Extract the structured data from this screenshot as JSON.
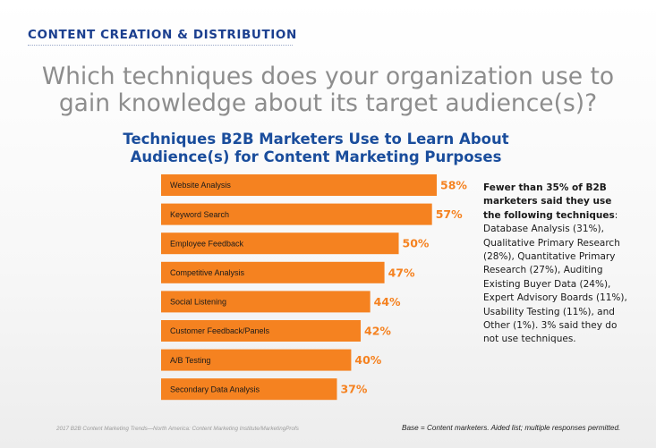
{
  "header": {
    "section_label": "CONTENT CREATION & DISTRIBUTION",
    "question_line1": "Which techniques does your organization use to",
    "question_line2": "gain knowledge about its target audience(s)?"
  },
  "chart_data": {
    "type": "bar",
    "orientation": "horizontal",
    "title_line1": "Techniques B2B Marketers Use to Learn About",
    "title_line2": "Audience(s) for Content Marketing Purposes",
    "categories": [
      "Website Analysis",
      "Keyword Search",
      "Employee Feedback",
      "Competitive Analysis",
      "Social Listening",
      "Customer Feedback/Panels",
      "A/B Testing",
      "Secondary Data Analysis"
    ],
    "values": [
      58,
      57,
      50,
      47,
      44,
      42,
      40,
      37
    ],
    "value_labels": [
      "58%",
      "57%",
      "50%",
      "47%",
      "44%",
      "42%",
      "40%",
      "37%"
    ],
    "value_unit": "%",
    "xlim": [
      0,
      58
    ],
    "bar_color": "#f58220",
    "label_color": "#f58220"
  },
  "note": {
    "bold_line1": "Fewer than 35% of B2B",
    "bold_line2": "marketers said they use",
    "bold_line3": "the following techniques",
    "line1": "Database Analysis (31%),",
    "line2": "Qualitative Primary Research",
    "line3": "(28%), Quantitative Primary",
    "line4": "Research (27%), Auditing",
    "line5": "Existing Buyer Data (24%),",
    "line6": "Expert Advisory Boards (11%),",
    "line7": "Usability Testing (11%), and",
    "line8": "Other (1%). 3% said they do",
    "line9": "not use techniques."
  },
  "footer": {
    "source": "2017 B2B Content Marketing Trends—North America: Content Marketing Institute/MarketingProfs",
    "base": "Base = Content marketers. Aided list; multiple responses permitted."
  },
  "colors": {
    "section_label": "#1b3f8f",
    "question": "#8d8d8d",
    "chart_title": "#1a4d9c",
    "accent": "#f58220"
  }
}
